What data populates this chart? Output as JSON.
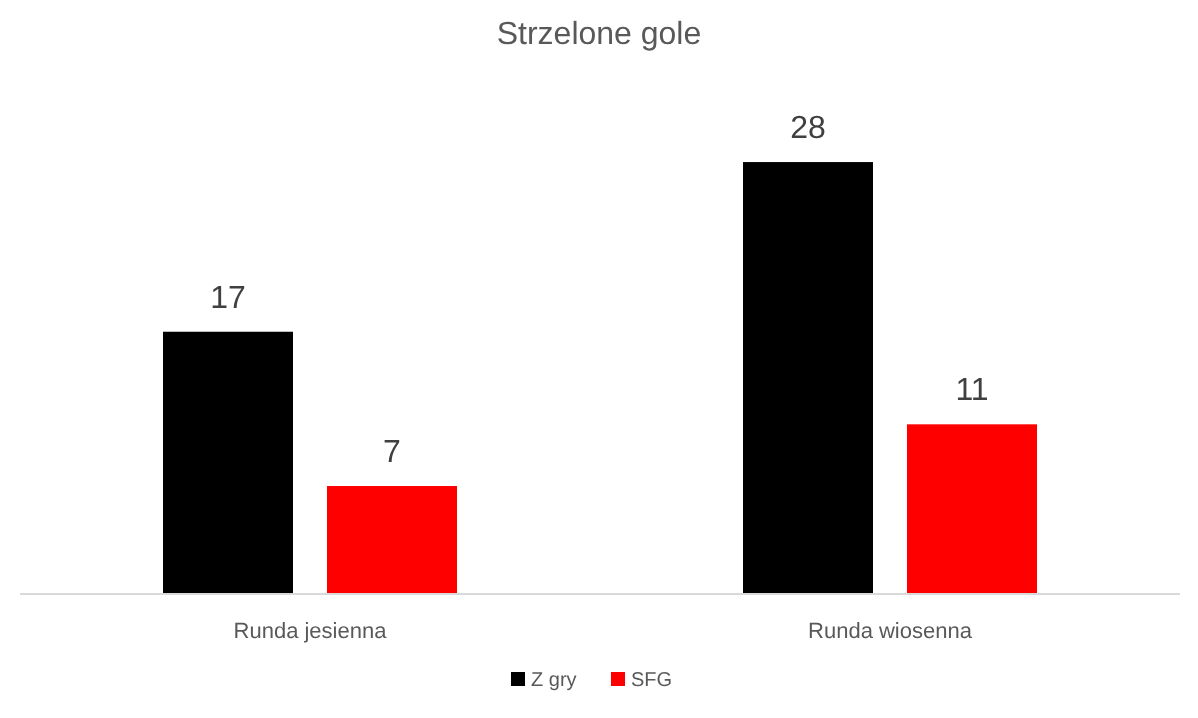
{
  "chart_data": {
    "type": "bar",
    "title": "Strzelone gole",
    "categories": [
      "Runda jesienna",
      "Runda wiosenna"
    ],
    "series": [
      {
        "name": "Z gry",
        "color": "#000000",
        "values": [
          17,
          28
        ]
      },
      {
        "name": "SFG",
        "color": "#ff0000",
        "values": [
          7,
          11
        ]
      }
    ],
    "data_labels": true,
    "legend": "bottom",
    "tick_labels": "x"
  }
}
